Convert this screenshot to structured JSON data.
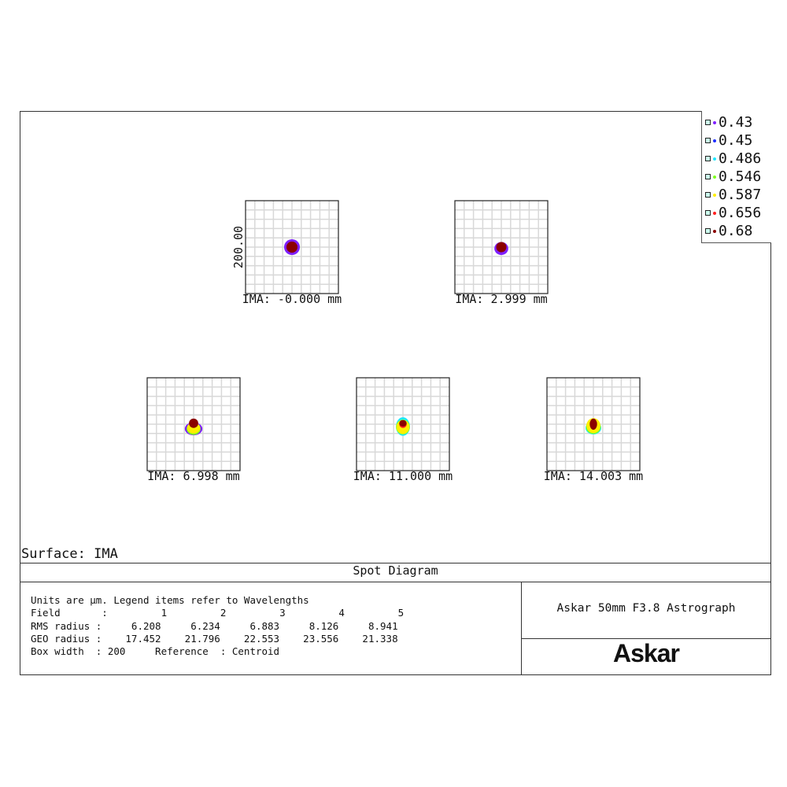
{
  "chart_data": {
    "type": "scatter",
    "title": "Spot Diagram",
    "surface_label": "Surface: IMA",
    "yaxis_label": "200.00",
    "box_width_um": 200,
    "grid": true,
    "legend_placement": "top-right",
    "legend": [
      {
        "label": "0.43",
        "color": "#7f1fff"
      },
      {
        "label": "0.45",
        "color": "#1f2fff"
      },
      {
        "label": "0.486",
        "color": "#1fe8ff"
      },
      {
        "label": "0.546",
        "color": "#7fff1f"
      },
      {
        "label": "0.587",
        "color": "#ffef00"
      },
      {
        "label": "0.656",
        "color": "#ff1f1f"
      },
      {
        "label": "0.68",
        "color": "#8b0000"
      }
    ],
    "fields": [
      {
        "label": "IMA: -0.000 mm",
        "spots": [
          {
            "wl": "0.43",
            "dx": 0,
            "dy": 0,
            "rx": 17,
            "ry": 17
          },
          {
            "wl": "0.68",
            "dx": 0,
            "dy": 0,
            "rx": 12,
            "ry": 12
          }
        ]
      },
      {
        "label": "IMA: 2.999 mm",
        "spots": [
          {
            "wl": "0.43",
            "dx": 0,
            "dy": -3,
            "rx": 15,
            "ry": 14
          },
          {
            "wl": "0.68",
            "dx": 0,
            "dy": 0,
            "rx": 11,
            "ry": 11
          }
        ]
      },
      {
        "label": "IMA: 6.998 mm",
        "spots": [
          {
            "wl": "0.43",
            "dx": 0,
            "dy": -10,
            "rx": 19,
            "ry": 14
          },
          {
            "wl": "0.546",
            "dx": 0,
            "dy": -10,
            "rx": 15,
            "ry": 13
          },
          {
            "wl": "0.587",
            "dx": 0,
            "dy": -8,
            "rx": 14,
            "ry": 12
          },
          {
            "wl": "0.68",
            "dx": 0,
            "dy": 2,
            "rx": 10,
            "ry": 10
          }
        ]
      },
      {
        "label": "IMA: 11.000 mm",
        "spots": [
          {
            "wl": "0.486",
            "dx": 0,
            "dy": -5,
            "rx": 15,
            "ry": 20
          },
          {
            "wl": "0.546",
            "dx": 0,
            "dy": -6,
            "rx": 15,
            "ry": 16
          },
          {
            "wl": "0.587",
            "dx": 0,
            "dy": -6,
            "rx": 14,
            "ry": 15
          },
          {
            "wl": "0.656",
            "dx": 0,
            "dy": 0,
            "rx": 8,
            "ry": 8
          },
          {
            "wl": "0.68",
            "dx": 0,
            "dy": 2,
            "rx": 8,
            "ry": 7
          }
        ]
      },
      {
        "label": "IMA: 14.003 mm",
        "spots": [
          {
            "wl": "0.486",
            "dx": 0,
            "dy": -8,
            "rx": 17,
            "ry": 14
          },
          {
            "wl": "0.546",
            "dx": 0,
            "dy": -6,
            "rx": 16,
            "ry": 15
          },
          {
            "wl": "0.587",
            "dx": 0,
            "dy": -3,
            "rx": 15,
            "ry": 16
          },
          {
            "wl": "0.68",
            "dx": 0,
            "dy": 0,
            "rx": 8,
            "ry": 12
          }
        ]
      }
    ]
  },
  "stats": {
    "line1": "Units are µm. Legend items refer to Wavelengths",
    "field": "Field       :         1         2         3         4         5",
    "rms": "RMS radius :     6.208     6.234     6.883     8.126     8.941",
    "geo": "GEO radius :    17.452    21.796    22.553    23.556    21.338",
    "box": "Box width  : 200     Reference  : Centroid"
  },
  "title_block": {
    "lens_name": "Askar 50mm F3.8 Astrograph",
    "logo": "Askar"
  }
}
